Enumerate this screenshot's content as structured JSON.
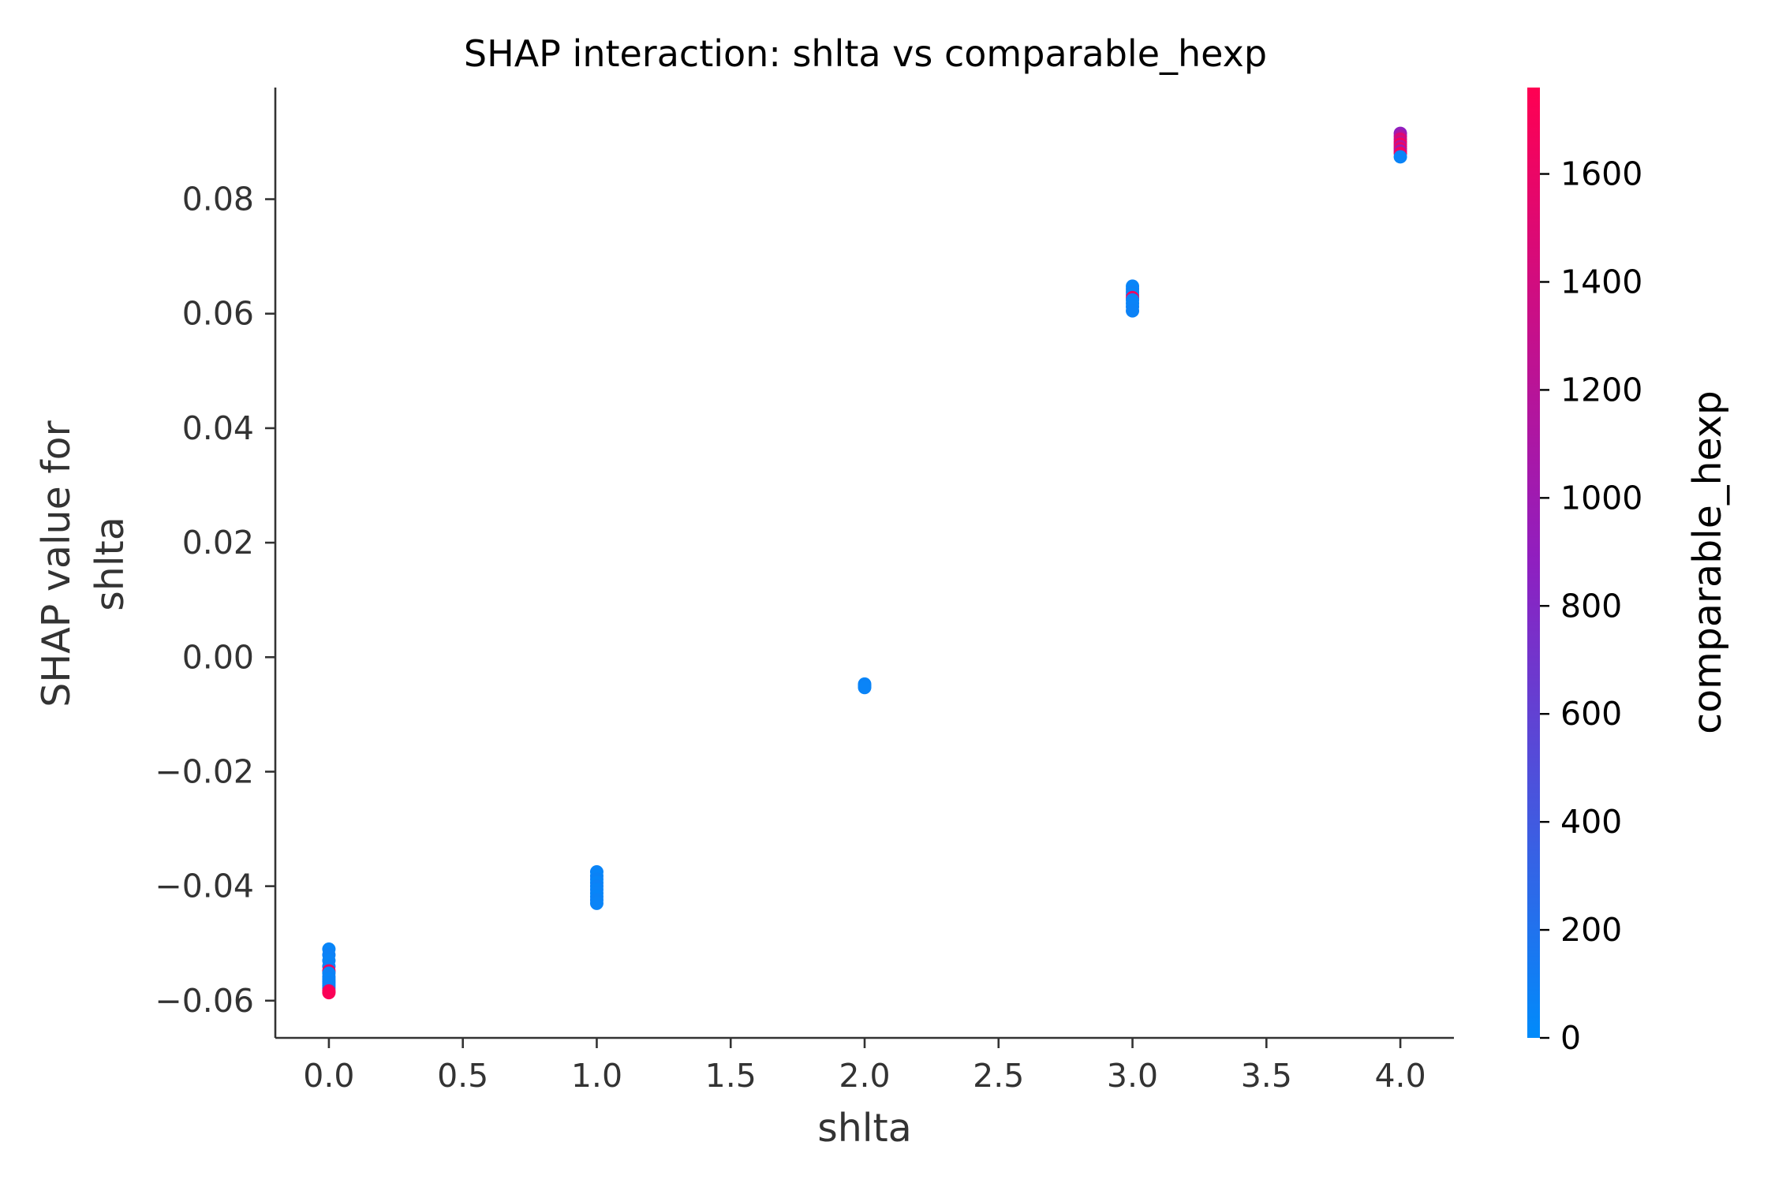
{
  "chart_data": {
    "type": "scatter",
    "title": "SHAP interaction: shlta vs comparable_hexp",
    "xlabel": "shlta",
    "ylabel": [
      "SHAP value for",
      "shlta"
    ],
    "xlim": [
      -0.2,
      4.2
    ],
    "ylim": [
      -0.0665,
      0.0995
    ],
    "xticks": [
      0.0,
      0.5,
      1.0,
      1.5,
      2.0,
      2.5,
      3.0,
      3.5,
      4.0
    ],
    "xtick_labels": [
      "0.0",
      "0.5",
      "1.0",
      "1.5",
      "2.0",
      "2.5",
      "3.0",
      "3.5",
      "4.0"
    ],
    "yticks": [
      -0.06,
      -0.04,
      -0.02,
      0.0,
      0.02,
      0.04,
      0.06,
      0.08
    ],
    "ytick_labels": [
      "−0.06",
      "−0.04",
      "−0.02",
      "0.00",
      "0.02",
      "0.04",
      "0.06",
      "0.08"
    ],
    "colorbar": {
      "label": "comparable_hexp",
      "range": [
        0,
        1760
      ],
      "ticks": [
        0,
        200,
        400,
        600,
        800,
        1000,
        1200,
        1400,
        1600
      ],
      "tick_labels": [
        "0",
        "200",
        "400",
        "600",
        "800",
        "1000",
        "1200",
        "1400",
        "1600"
      ],
      "low_color": "#008bfb",
      "mid_color": "#8f1fc0",
      "high_color": "#ff0052"
    },
    "grid": false,
    "points": [
      {
        "x": 0,
        "y": -0.051,
        "c": 50
      },
      {
        "x": 0,
        "y": -0.052,
        "c": 80
      },
      {
        "x": 0,
        "y": -0.053,
        "c": 60
      },
      {
        "x": 0,
        "y": -0.054,
        "c": 70
      },
      {
        "x": 0,
        "y": -0.0548,
        "c": 1700
      },
      {
        "x": 0,
        "y": -0.0552,
        "c": 40
      },
      {
        "x": 0,
        "y": -0.0558,
        "c": 90
      },
      {
        "x": 0,
        "y": -0.0562,
        "c": 55
      },
      {
        "x": 0,
        "y": -0.0566,
        "c": 65
      },
      {
        "x": 0,
        "y": -0.057,
        "c": 75
      },
      {
        "x": 0,
        "y": -0.0574,
        "c": 45
      },
      {
        "x": 0,
        "y": -0.0578,
        "c": 85
      },
      {
        "x": 0,
        "y": -0.0583,
        "c": 1650
      },
      {
        "x": 0,
        "y": -0.0586,
        "c": 1720
      },
      {
        "x": 1,
        "y": -0.0375,
        "c": 60
      },
      {
        "x": 1,
        "y": -0.0382,
        "c": 50
      },
      {
        "x": 1,
        "y": -0.0388,
        "c": 70
      },
      {
        "x": 1,
        "y": -0.0394,
        "c": 40
      },
      {
        "x": 1,
        "y": -0.04,
        "c": 80
      },
      {
        "x": 1,
        "y": -0.0406,
        "c": 55
      },
      {
        "x": 1,
        "y": -0.0412,
        "c": 65
      },
      {
        "x": 1,
        "y": -0.0418,
        "c": 45
      },
      {
        "x": 1,
        "y": -0.0424,
        "c": 75
      },
      {
        "x": 1,
        "y": -0.043,
        "c": 60
      },
      {
        "x": 2,
        "y": -0.0047,
        "c": 50
      },
      {
        "x": 2,
        "y": -0.005,
        "c": 70
      },
      {
        "x": 2,
        "y": -0.0053,
        "c": 60
      },
      {
        "x": 3,
        "y": 0.0648,
        "c": 60
      },
      {
        "x": 3,
        "y": 0.0643,
        "c": 50
      },
      {
        "x": 3,
        "y": 0.0638,
        "c": 80
      },
      {
        "x": 3,
        "y": 0.0633,
        "c": 40
      },
      {
        "x": 3,
        "y": 0.0628,
        "c": 1650
      },
      {
        "x": 3,
        "y": 0.0624,
        "c": 70
      },
      {
        "x": 3,
        "y": 0.0618,
        "c": 55
      },
      {
        "x": 3,
        "y": 0.0612,
        "c": 65
      },
      {
        "x": 3,
        "y": 0.0605,
        "c": 75
      },
      {
        "x": 4,
        "y": 0.0915,
        "c": 900
      },
      {
        "x": 4,
        "y": 0.091,
        "c": 1100
      },
      {
        "x": 4,
        "y": 0.0905,
        "c": 1500
      },
      {
        "x": 4,
        "y": 0.09,
        "c": 1300
      },
      {
        "x": 4,
        "y": 0.0896,
        "c": 1700
      },
      {
        "x": 4,
        "y": 0.0892,
        "c": 1200
      },
      {
        "x": 4,
        "y": 0.0888,
        "c": 1600
      },
      {
        "x": 4,
        "y": 0.0884,
        "c": 1000
      },
      {
        "x": 4,
        "y": 0.088,
        "c": 1650
      },
      {
        "x": 4,
        "y": 0.0874,
        "c": 60
      }
    ]
  }
}
